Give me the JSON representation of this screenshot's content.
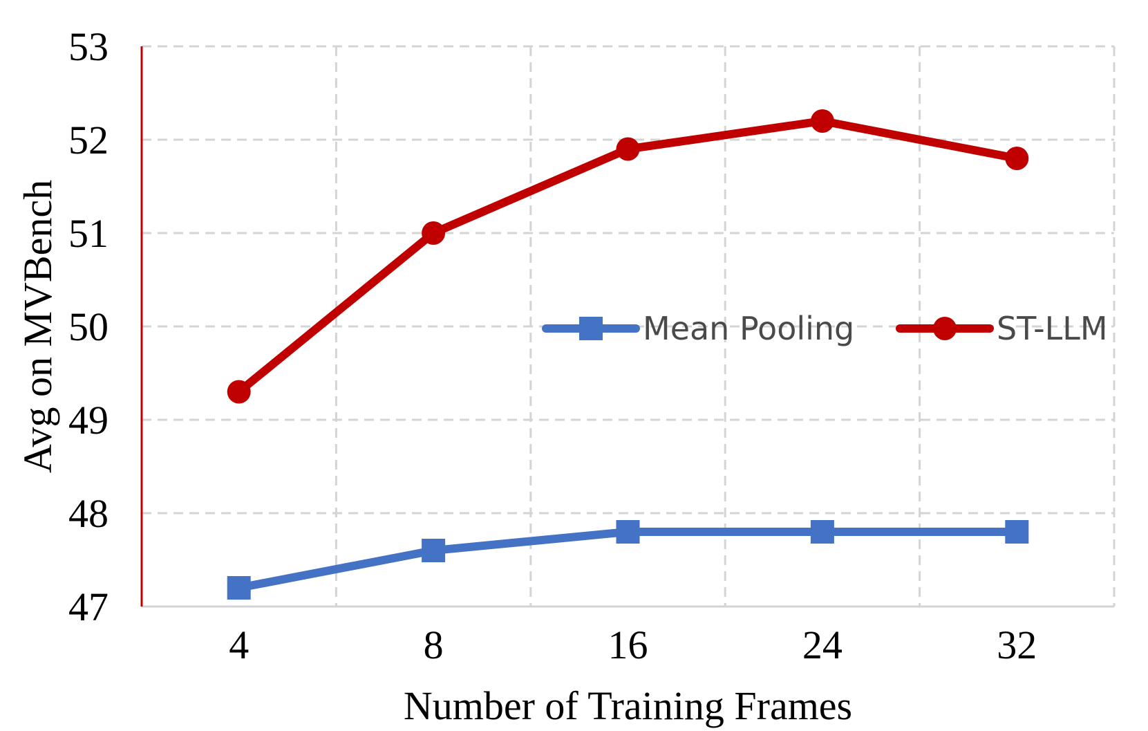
{
  "chart_data": {
    "type": "line",
    "categories": [
      "4",
      "8",
      "16",
      "24",
      "32"
    ],
    "series": [
      {
        "name": "Mean Pooling",
        "values": [
          47.2,
          47.6,
          47.8,
          47.8,
          47.8
        ],
        "color": "#4472C4",
        "marker": "square"
      },
      {
        "name": "ST-LLM",
        "values": [
          49.3,
          51.0,
          51.9,
          52.2,
          51.8
        ],
        "color": "#C00000",
        "marker": "circle"
      }
    ],
    "xlabel": "Number of Training Frames",
    "ylabel": "Avg on MVBench",
    "ylim": [
      47,
      53
    ],
    "yticks": [
      47,
      48,
      49,
      50,
      51,
      52,
      53
    ],
    "grid": true,
    "legend_position": "center-right"
  }
}
